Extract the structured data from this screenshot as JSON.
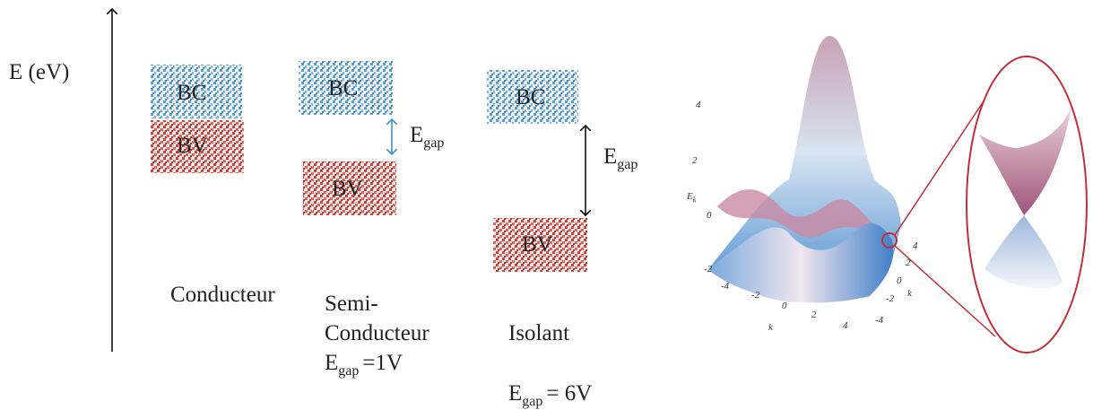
{
  "axis_label": "E (eV)",
  "columns": [
    {
      "bc": "BC",
      "bv": "BV",
      "name": "Conducteur"
    },
    {
      "bc": "BC",
      "bv": "BV",
      "gap_label": {
        "main": "E",
        "sub": "gap"
      },
      "name": [
        "Semi-",
        "Conducteur"
      ],
      "gap_value": {
        "main": "E",
        "sub": "gap",
        "rest": "=1V"
      }
    },
    {
      "bc": "BC",
      "bv": "BV",
      "gap_label": {
        "main": "E",
        "sub": "gap"
      },
      "name": "Isolant",
      "gap_value": {
        "main": "E",
        "sub": "gap",
        "rest": "= 6V"
      }
    }
  ],
  "plot": {
    "z_label": {
      "main": "E",
      "sub": "k"
    },
    "z_ticks": [
      "4",
      "2",
      "0",
      "-2"
    ],
    "x_ticks": [
      "-4",
      "-2",
      "0",
      "2",
      "4"
    ],
    "x_label": "k",
    "y_ticks": [
      "4",
      "2",
      "0",
      "-2",
      "-4"
    ],
    "y_label": "k"
  }
}
